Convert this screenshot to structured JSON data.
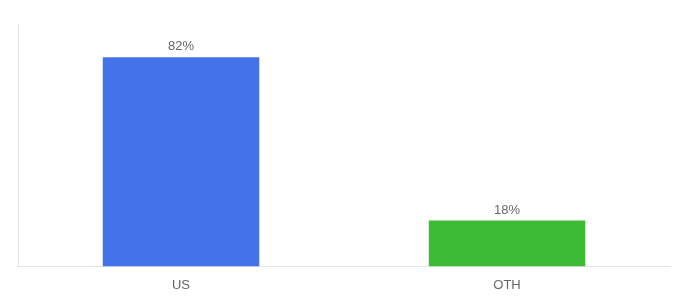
{
  "chart_data": {
    "type": "bar",
    "categories": [
      "US",
      "OTH"
    ],
    "values": [
      82,
      18
    ],
    "value_labels": [
      "82%",
      "18%"
    ],
    "colors": [
      "#4472e8",
      "#3dbb35"
    ],
    "ylim": [
      0,
      95
    ],
    "grid": false,
    "data_labels": true,
    "tick_labels": "x"
  }
}
